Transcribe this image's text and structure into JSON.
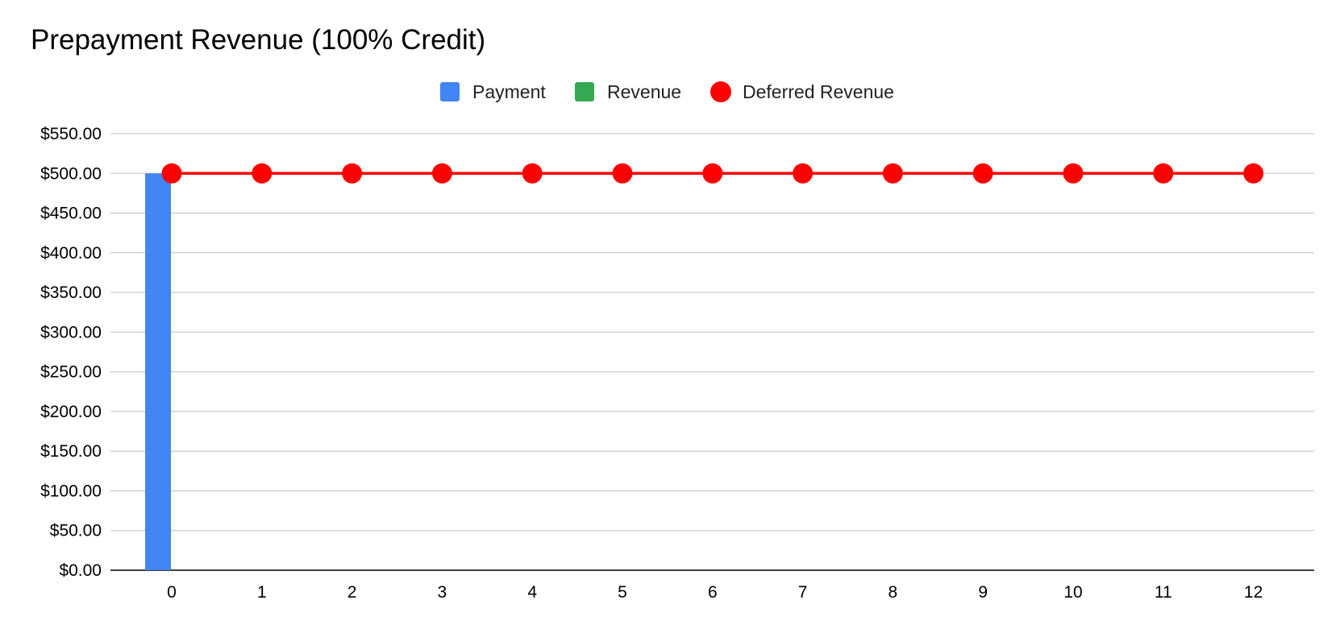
{
  "chart_data": {
    "type": "bar",
    "title": "Prepayment Revenue (100% Credit)",
    "xlabel": "",
    "ylabel": "",
    "categories": [
      "0",
      "1",
      "2",
      "3",
      "4",
      "5",
      "6",
      "7",
      "8",
      "9",
      "10",
      "11",
      "12"
    ],
    "series": [
      {
        "name": "Payment",
        "kind": "bar",
        "color": "#4285f4",
        "values": [
          500,
          0,
          0,
          0,
          0,
          0,
          0,
          0,
          0,
          0,
          0,
          0,
          0
        ]
      },
      {
        "name": "Revenue",
        "kind": "bar",
        "color": "#34a853",
        "values": [
          0,
          0,
          0,
          0,
          0,
          0,
          0,
          0,
          0,
          0,
          0,
          0,
          0
        ]
      },
      {
        "name": "Deferred Revenue",
        "kind": "line",
        "marker": "circle",
        "color": "#ff0000",
        "values": [
          500,
          500,
          500,
          500,
          500,
          500,
          500,
          500,
          500,
          500,
          500,
          500,
          500
        ]
      }
    ],
    "ylim": [
      0,
      550
    ],
    "yticks": [
      0,
      50,
      100,
      150,
      200,
      250,
      300,
      350,
      400,
      450,
      500,
      550
    ],
    "ytick_labels": [
      "$0.00",
      "$50.00",
      "$100.00",
      "$150.00",
      "$200.00",
      "$250.00",
      "$300.00",
      "$350.00",
      "$400.00",
      "$450.00",
      "$500.00",
      "$550.00"
    ],
    "grid": true,
    "legend_position": "top-center"
  }
}
